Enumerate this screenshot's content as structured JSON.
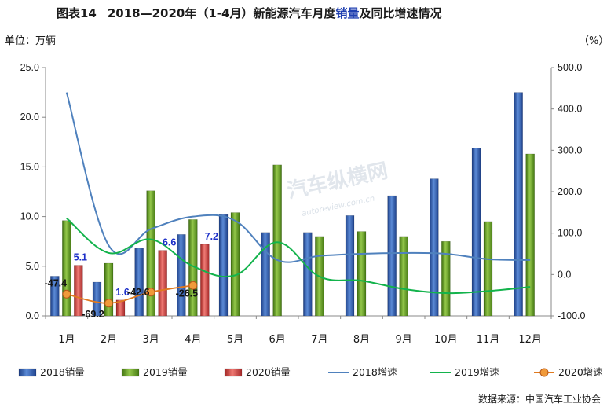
{
  "chart_data": {
    "type": "bar",
    "title_prefix": "图表14",
    "title_main": "2018—2020年（1-4月）新能源汽车月度",
    "title_em": "销量",
    "title_suffix": "及同比增速情况",
    "left_unit": "单位：万辆",
    "right_unit": "（%）",
    "categories": [
      "1月",
      "2月",
      "3月",
      "4月",
      "5月",
      "6月",
      "7月",
      "8月",
      "9月",
      "10月",
      "11月",
      "12月"
    ],
    "y_left": {
      "min": 0,
      "max": 25,
      "ticks": [
        "0.0",
        "5.0",
        "10.0",
        "15.0",
        "20.0",
        "25.0"
      ]
    },
    "y_right": {
      "min": -100,
      "max": 500,
      "ticks": [
        "-100.0",
        "0.0",
        "100.0",
        "200.0",
        "300.0",
        "400.0",
        "500.0"
      ]
    },
    "bar_series": [
      {
        "name": "2018销量",
        "color": "#2f5fb3",
        "values": [
          4.0,
          3.4,
          6.8,
          8.2,
          10.2,
          8.4,
          8.4,
          10.1,
          12.1,
          13.8,
          16.9,
          22.5
        ]
      },
      {
        "name": "2019销量",
        "color": "#6aa321",
        "values": [
          9.6,
          5.3,
          12.6,
          9.7,
          10.4,
          15.2,
          8.0,
          8.5,
          8.0,
          7.5,
          9.5,
          16.3
        ]
      },
      {
        "name": "2020销量",
        "color": "#d9423f",
        "values": [
          5.1,
          1.6,
          6.6,
          7.2
        ]
      }
    ],
    "line_series": [
      {
        "name": "2018增速",
        "color": "#4f81bd",
        "values": [
          440,
          70,
          110,
          140,
          130,
          35,
          45,
          50,
          52,
          50,
          37,
          35
        ]
      },
      {
        "name": "2019增速",
        "color": "#13b34c",
        "values": [
          136,
          52,
          85,
          20,
          -2,
          78,
          -5,
          -15,
          -35,
          -45,
          -40,
          -30
        ]
      },
      {
        "name": "2020增速",
        "color": "#e07a1f",
        "values": [
          -47.4,
          -69.2,
          -42.6,
          -26.5
        ]
      }
    ],
    "bar_labels_2020": [
      "5.1",
      "1.6",
      "6.6",
      "7.2"
    ],
    "line_labels_2020": [
      "-47.4",
      "-69.2",
      "-42.6",
      "-26.5"
    ],
    "legend": [
      "2018销量",
      "2019销量",
      "2020销量",
      "2018增速",
      "2019增速",
      "2020增速"
    ],
    "source": "数据来源：中国汽车工业协会",
    "watermark": "汽车纵横网",
    "watermark_url": "autoreview.com.cn",
    "grid": false
  }
}
